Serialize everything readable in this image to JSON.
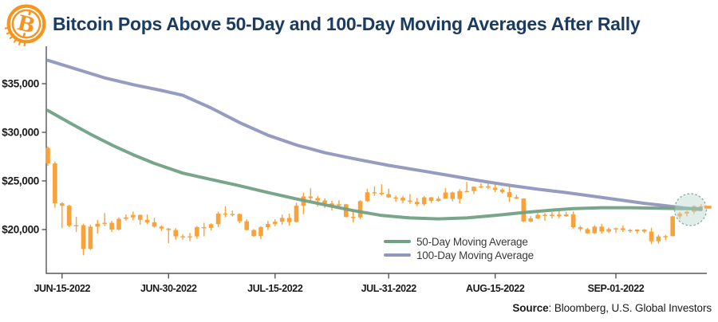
{
  "header": {
    "title": "Bitcoin Pops Above 50-Day and 100-Day Moving Averages After Rally",
    "logo_icon": "bitcoin-coin-icon",
    "title_color": "#1B3C60",
    "logo_color": "#F7941E"
  },
  "legend": {
    "items": [
      {
        "label": "50-Day Moving Average",
        "color": "#72A085"
      },
      {
        "label": "100-Day Moving Average",
        "color": "#9096BD"
      }
    ]
  },
  "source": {
    "label": "Source",
    "text": ": Bloomberg, U.S. Global Investors"
  },
  "chart_data": {
    "type": "candlestick+line",
    "title": "Bitcoin Pops Above 50-Day and 100-Day Moving Averages After Rally",
    "xlabel": "",
    "ylabel": "",
    "grid": false,
    "legend_position": "bottom-center-inside",
    "ylim": [
      15500,
      38850
    ],
    "candle_color": "#F8A23B",
    "axis_color": "#55565A",
    "y_axis": {
      "ticks": [
        {
          "value": 20000,
          "label": "$20,000"
        },
        {
          "value": 25000,
          "label": "$25,000"
        },
        {
          "value": 30000,
          "label": "$30,000"
        },
        {
          "value": 35000,
          "label": "$35,000"
        }
      ]
    },
    "x_axis": {
      "ticks": [
        {
          "index": 2,
          "label": "JUN-15-2022"
        },
        {
          "index": 17,
          "label": "JUN-30-2022"
        },
        {
          "index": 32,
          "label": "JUL-15-2022"
        },
        {
          "index": 48,
          "label": "JUL-31-2022"
        },
        {
          "index": 63,
          "label": "AUG-15-2022"
        },
        {
          "index": 80,
          "label": "SEP-01-2022"
        }
      ]
    },
    "candles_format": "[open, high, low, close] USD, daily from 2022-06-13 to 2022-09-13",
    "candles": [
      [
        28400,
        28550,
        26550,
        26800
      ],
      [
        26800,
        27000,
        22250,
        22700
      ],
      [
        22700,
        22800,
        20150,
        22450
      ],
      [
        22450,
        22550,
        20250,
        20400
      ],
      [
        20400,
        21300,
        19750,
        20450
      ],
      [
        20450,
        20600,
        17350,
        18000
      ],
      [
        18000,
        20500,
        17900,
        20300
      ],
      [
        20300,
        21000,
        19600,
        20600
      ],
      [
        20600,
        21700,
        20350,
        20700
      ],
      [
        20700,
        20900,
        19750,
        20000
      ],
      [
        20000,
        21250,
        19900,
        21100
      ],
      [
        21100,
        21550,
        20900,
        21250
      ],
      [
        21250,
        21850,
        20950,
        21500
      ],
      [
        21500,
        21550,
        20500,
        21000
      ],
      [
        21000,
        21550,
        20550,
        20750
      ],
      [
        20750,
        21200,
        20200,
        20300
      ],
      [
        20300,
        20450,
        19850,
        20100
      ],
      [
        20100,
        20150,
        18600,
        19950
      ],
      [
        19950,
        20150,
        18950,
        19300
      ],
      [
        19300,
        19500,
        18950,
        19250
      ],
      [
        19250,
        19650,
        18800,
        19300
      ],
      [
        19300,
        20350,
        19050,
        20250
      ],
      [
        20250,
        20700,
        19300,
        20175
      ],
      [
        20175,
        20650,
        19900,
        20550
      ],
      [
        20550,
        21850,
        20250,
        21650
      ],
      [
        21650,
        22400,
        21250,
        21600
      ],
      [
        21600,
        21950,
        21350,
        21600
      ],
      [
        21600,
        21650,
        20650,
        20850
      ],
      [
        20850,
        21050,
        19900,
        19950
      ],
      [
        19950,
        20050,
        19250,
        19325
      ],
      [
        19325,
        20350,
        19000,
        20250
      ],
      [
        20250,
        20900,
        19950,
        20575
      ],
      [
        20575,
        21050,
        20350,
        20800
      ],
      [
        20800,
        21550,
        20500,
        21200
      ],
      [
        21200,
        21650,
        20400,
        20775
      ],
      [
        20775,
        22750,
        20750,
        22450
      ],
      [
        22450,
        23800,
        21575,
        23400
      ],
      [
        23400,
        24250,
        22900,
        23230
      ],
      [
        23230,
        23450,
        22350,
        22990
      ],
      [
        22990,
        23200,
        22200,
        22690
      ],
      [
        22690,
        22950,
        21950,
        22450
      ],
      [
        22450,
        23000,
        22250,
        22600
      ],
      [
        22600,
        22650,
        21250,
        21300
      ],
      [
        21300,
        21900,
        20750,
        21250
      ],
      [
        21250,
        23000,
        21050,
        22930
      ],
      [
        22930,
        24200,
        22850,
        23840
      ],
      [
        23840,
        24450,
        23450,
        23770
      ],
      [
        23770,
        24650,
        23500,
        23640
      ],
      [
        23640,
        24200,
        23250,
        23300
      ],
      [
        23300,
        23500,
        22850,
        23270
      ],
      [
        23270,
        23470,
        22700,
        22980
      ],
      [
        22980,
        23650,
        22650,
        22850
      ],
      [
        22850,
        23250,
        22400,
        22600
      ],
      [
        22600,
        23450,
        22450,
        23310
      ],
      [
        23310,
        23350,
        22750,
        22950
      ],
      [
        22950,
        23400,
        22850,
        23175
      ],
      [
        23175,
        24250,
        23150,
        23810
      ],
      [
        23810,
        23900,
        22900,
        23150
      ],
      [
        23150,
        24150,
        22700,
        23950
      ],
      [
        23950,
        24900,
        23850,
        23955
      ],
      [
        23955,
        24450,
        23650,
        24400
      ],
      [
        24400,
        24750,
        24250,
        24440
      ],
      [
        24440,
        24750,
        24150,
        24305
      ],
      [
        24305,
        24800,
        23850,
        24095
      ],
      [
        24095,
        24250,
        23700,
        23855
      ],
      [
        23855,
        24430,
        22850,
        23340
      ],
      [
        23340,
        23590,
        23120,
        23190
      ],
      [
        23190,
        23220,
        20770,
        20830
      ],
      [
        20830,
        21380,
        20760,
        21140
      ],
      [
        21140,
        21700,
        21070,
        21515
      ],
      [
        21515,
        21690,
        20900,
        21400
      ],
      [
        21400,
        21800,
        21150,
        21530
      ],
      [
        21530,
        21900,
        21160,
        21370
      ],
      [
        21370,
        21820,
        21310,
        21560
      ],
      [
        21560,
        21870,
        20110,
        20240
      ],
      [
        20240,
        20390,
        19810,
        20040
      ],
      [
        20040,
        20170,
        19550,
        19615
      ],
      [
        19615,
        20440,
        19560,
        20295
      ],
      [
        20295,
        20580,
        19570,
        19800
      ],
      [
        19800,
        20200,
        19650,
        20050
      ],
      [
        20050,
        20200,
        19650,
        20130
      ],
      [
        20130,
        20440,
        19760,
        19950
      ],
      [
        19950,
        20050,
        19680,
        19830
      ],
      [
        19830,
        20030,
        19590,
        19990
      ],
      [
        19990,
        20060,
        19640,
        19790
      ],
      [
        19790,
        20180,
        18500,
        18800
      ],
      [
        18800,
        19450,
        18550,
        19290
      ],
      [
        19290,
        19450,
        18900,
        19320
      ],
      [
        19320,
        21400,
        19300,
        21360
      ],
      [
        21360,
        21800,
        21100,
        21650
      ],
      [
        21650,
        21930,
        21350,
        21830
      ],
      [
        21830,
        22500,
        21600,
        22400
      ],
      [
        22400,
        22600,
        22050,
        22300
      ]
    ],
    "series": [
      {
        "id": "ma-50-line",
        "name": "50-Day Moving Average",
        "color": "#72A085",
        "points": [
          [
            0,
            32250
          ],
          [
            3,
            31000
          ],
          [
            6,
            29800
          ],
          [
            9,
            28700
          ],
          [
            12,
            27700
          ],
          [
            15,
            26800
          ],
          [
            19,
            25800
          ],
          [
            23,
            25150
          ],
          [
            27,
            24500
          ],
          [
            31,
            23800
          ],
          [
            35,
            23150
          ],
          [
            39,
            22550
          ],
          [
            43,
            21950
          ],
          [
            47,
            21450
          ],
          [
            51,
            21200
          ],
          [
            55,
            21100
          ],
          [
            59,
            21200
          ],
          [
            63,
            21450
          ],
          [
            67,
            21750
          ],
          [
            71,
            22000
          ],
          [
            74,
            22150
          ],
          [
            78,
            22250
          ],
          [
            82,
            22250
          ],
          [
            86,
            22200
          ],
          [
            89,
            22150
          ],
          [
            92,
            22150
          ]
        ]
      },
      {
        "id": "ma-100-line",
        "name": "100-Day Moving Average",
        "color": "#9096BD",
        "points": [
          [
            0,
            37400
          ],
          [
            4,
            36500
          ],
          [
            8,
            35600
          ],
          [
            12,
            34900
          ],
          [
            16,
            34300
          ],
          [
            19,
            33800
          ],
          [
            23,
            32500
          ],
          [
            27,
            31000
          ],
          [
            31,
            29700
          ],
          [
            35,
            28700
          ],
          [
            39,
            27900
          ],
          [
            43,
            27300
          ],
          [
            48,
            26600
          ],
          [
            53,
            26000
          ],
          [
            57,
            25500
          ],
          [
            61,
            25000
          ],
          [
            65,
            24550
          ],
          [
            69,
            24150
          ],
          [
            73,
            23800
          ],
          [
            77,
            23400
          ],
          [
            81,
            23000
          ],
          [
            84,
            22700
          ],
          [
            87,
            22450
          ],
          [
            90,
            22200
          ],
          [
            92,
            22050
          ]
        ]
      }
    ],
    "annotation_circle": {
      "description": "highlight of rally popping above both moving averages",
      "index": 90.5,
      "value": 22050,
      "radius_px": 20,
      "fill": "#BCD6CC",
      "stroke": "#8CA79E"
    },
    "last_price": 22300
  }
}
